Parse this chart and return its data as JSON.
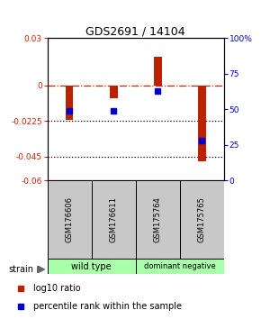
{
  "title": "GDS2691 / 14104",
  "samples": [
    "GSM176606",
    "GSM176611",
    "GSM175764",
    "GSM175765"
  ],
  "log10_ratio": [
    -0.022,
    -0.008,
    0.018,
    -0.048
  ],
  "percentile_rank": [
    0.49,
    0.49,
    0.63,
    0.28
  ],
  "ylim_left": [
    -0.06,
    0.03
  ],
  "ylim_right": [
    0,
    1.0
  ],
  "yticks_left": [
    0.03,
    0,
    -0.0225,
    -0.045,
    -0.06
  ],
  "ytick_labels_left": [
    "0.03",
    "0",
    "-0.0225",
    "-0.045",
    "-0.06"
  ],
  "yticks_right": [
    1.0,
    0.75,
    0.5,
    0.25,
    0.0
  ],
  "ytick_labels_right": [
    "100%",
    "75",
    "50",
    "25",
    "0"
  ],
  "group_labels": [
    "wild type",
    "dominant negative"
  ],
  "group_colors": [
    "#aaffaa",
    "#aaffaa"
  ],
  "bar_color": "#bb2200",
  "dot_color": "#0000cc",
  "hline_0_color": "#cc2200",
  "background_color": "#ffffff",
  "bar_width": 0.18,
  "legend_bar_label": "log10 ratio",
  "legend_dot_label": "percentile rank within the sample",
  "strain_label": "strain",
  "sample_box_color": "#c8c8c8"
}
